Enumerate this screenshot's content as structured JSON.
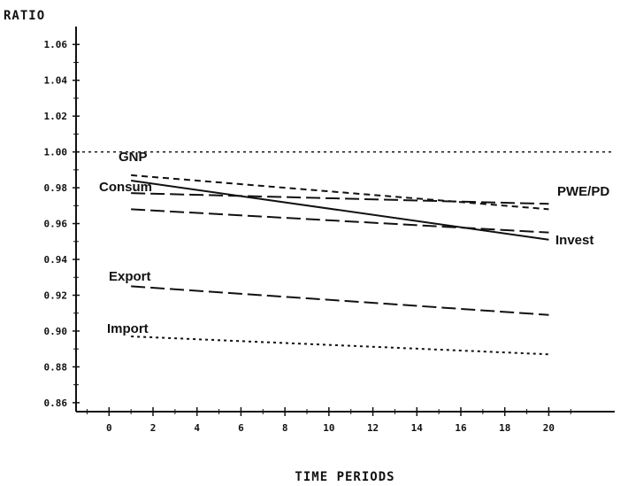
{
  "chart_data": {
    "type": "line",
    "xlabel": "TIME PERIODS",
    "ylabel": "RATIO",
    "xlim": [
      -1.5,
      23
    ],
    "ylim": [
      0.855,
      1.07
    ],
    "xticks": [
      0,
      2,
      4,
      6,
      8,
      10,
      12,
      14,
      16,
      18,
      20
    ],
    "xtick_labels": [
      "0",
      "2",
      "4",
      "6",
      "8",
      "10",
      "12",
      "14",
      "16",
      "18",
      "20"
    ],
    "yticks": [
      0.86,
      0.88,
      0.9,
      0.92,
      0.94,
      0.96,
      0.98,
      1.0,
      1.02,
      1.04,
      1.06
    ],
    "ytick_labels": [
      "0.86",
      "0.88",
      "0.90",
      "0.92",
      "0.94",
      "0.96",
      "0.98",
      "1.00",
      "1.02",
      "1.04",
      "1.06"
    ],
    "reference_line": {
      "y": 1.0,
      "style": "dotted"
    },
    "series": [
      {
        "name": "GNP",
        "style": "dashed-short",
        "x": [
          1,
          20
        ],
        "y": [
          0.987,
          0.968
        ]
      },
      {
        "name": "PWE/PD",
        "style": "long-dash",
        "x": [
          1,
          20
        ],
        "y": [
          0.977,
          0.971
        ]
      },
      {
        "name": "Consum",
        "style": "long-dash",
        "x": [
          1,
          20
        ],
        "y": [
          0.968,
          0.955
        ]
      },
      {
        "name": "Invest",
        "style": "solid",
        "x": [
          1,
          20
        ],
        "y": [
          0.984,
          0.951
        ]
      },
      {
        "name": "Export",
        "style": "long-dash",
        "x": [
          1,
          20
        ],
        "y": [
          0.925,
          0.909
        ]
      },
      {
        "name": "Import",
        "style": "dotted",
        "x": [
          1,
          20
        ],
        "y": [
          0.897,
          0.887
        ]
      }
    ]
  }
}
